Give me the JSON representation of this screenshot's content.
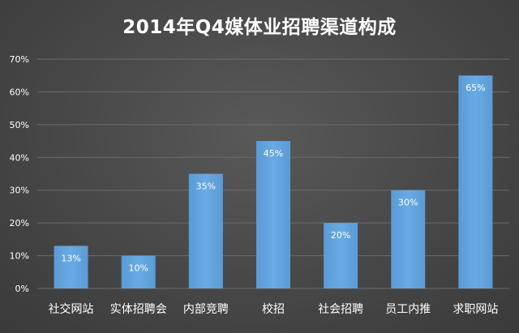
{
  "chart_data": {
    "type": "bar",
    "title": "2014年Q4媒体业招聘渠道构成",
    "xlabel": "",
    "ylabel": "",
    "categories": [
      "社交网站",
      "实体招聘会",
      "内部竞聘",
      "校招",
      "社会招聘",
      "员工内推",
      "求职网站"
    ],
    "values": [
      13,
      10,
      35,
      45,
      20,
      30,
      65
    ],
    "data_labels": [
      "13%",
      "10%",
      "35%",
      "45%",
      "20%",
      "30%",
      "65%"
    ],
    "y_ticks": [
      "0%",
      "10%",
      "20%",
      "30%",
      "40%",
      "50%",
      "60%",
      "70%"
    ],
    "ylim": [
      0,
      70
    ],
    "grid": true,
    "legend": "none",
    "colors": {
      "bar": "#5b9bd5",
      "bar_gradient_top": "#6aaae4",
      "gridline": "#6b6b6b",
      "text": "#ffffff"
    }
  }
}
